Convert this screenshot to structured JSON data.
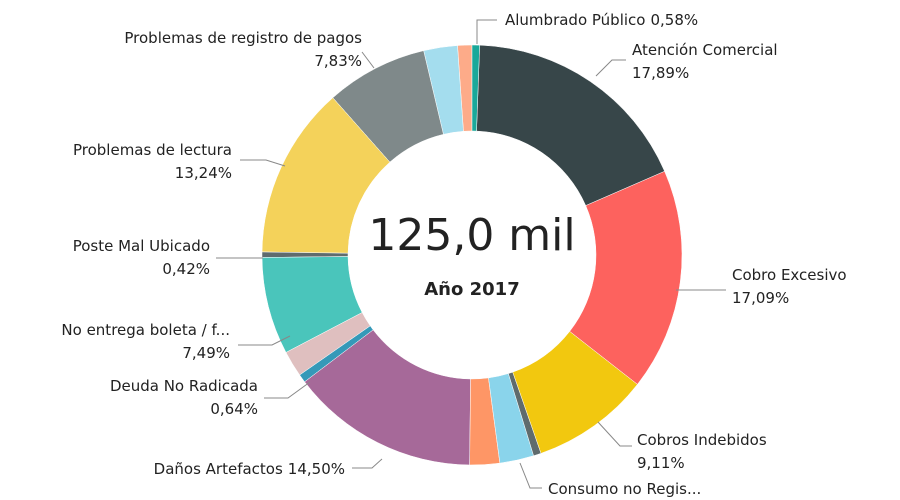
{
  "chart_data": {
    "type": "pie",
    "center_label": "125,0 mil",
    "subtitle": "Año 2017",
    "categories": [
      "Alumbrado Público",
      "Atención Comercial",
      "Cobro Excesivo",
      "Cobros Indebidos",
      null,
      "Consumo no Regis...",
      null,
      "Daños Artefactos",
      "Deuda No Radicada",
      null,
      "No entrega boleta / f...",
      "Poste Mal Ubicado",
      "Problemas de lectura",
      "Problemas de registro de pagos",
      null,
      null
    ],
    "values": [
      0.58,
      17.89,
      17.09,
      9.11,
      0.59,
      2.62,
      2.3,
      14.5,
      0.64,
      2.0,
      7.49,
      0.42,
      13.24,
      7.83,
      2.6,
      1.1
    ],
    "value_labels": [
      "0,58%",
      "17,89%",
      "17,09%",
      "9,11%",
      null,
      "2,62%",
      null,
      "14,50%",
      "0,64%",
      null,
      "7,49%",
      "0,42%",
      "13,24%",
      "7,83%",
      null,
      null
    ],
    "colors": [
      "#1aa89a",
      "#374649",
      "#fd625e",
      "#f2c80f",
      "#5f6b6d",
      "#8ad4eb",
      "#fe9666",
      "#a66999",
      "#3599b8",
      "#dfbfbf",
      "#4ac5bb",
      "#5f6b6d",
      "#f4d25a",
      "#7f898a",
      "#a4ddee",
      "#fdab89"
    ],
    "donut": true
  }
}
